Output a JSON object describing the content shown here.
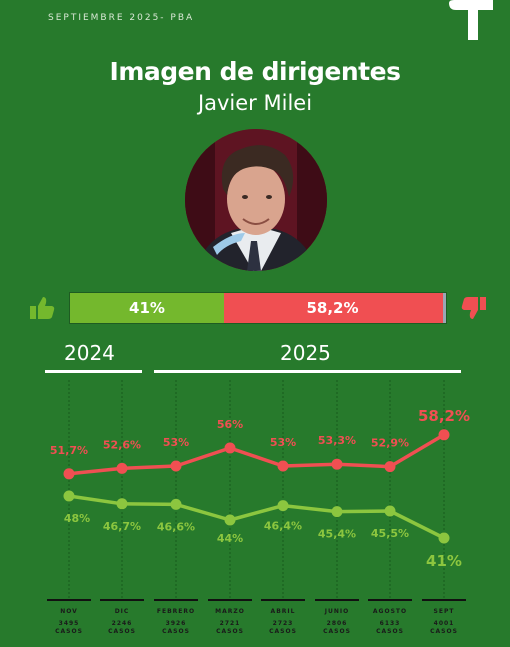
{
  "header": {
    "top_label": "SEPTIEMBRE 2025- PBA"
  },
  "title": "Imagen de dirigentes",
  "subtitle": "Javier Milei",
  "summary_bar": {
    "approve": 41,
    "disapprove": 58.2,
    "approve_label": "41%",
    "disapprove_label": "58,2%"
  },
  "years": [
    {
      "label": "2024"
    },
    {
      "label": "2025"
    }
  ],
  "icons": {
    "approve": "thumbs-up-icon",
    "disapprove": "thumbs-down-icon",
    "logo": "brand-logo-icon"
  },
  "colors": {
    "background": "#277a2c",
    "approve": "#8cc63f",
    "disapprove": "#f04f52"
  },
  "chart_data": {
    "type": "line",
    "categories": [
      "NOV",
      "DIC",
      "FEBRERO",
      "MARZO",
      "ABRIL",
      "JUNIO",
      "AGOSTO",
      "SEPT"
    ],
    "cases": [
      "3495 CASOS",
      "2246 CASOS",
      "3926 CASOS",
      "2721 CASOS",
      "2723 CASOS",
      "2806 CASOS",
      "6133 CASOS",
      "4001 CASOS"
    ],
    "series": [
      {
        "values": [
          51.7,
          52.6,
          53,
          56,
          53,
          53.3,
          52.9,
          58.2
        ],
        "labels": [
          "51,7%",
          "52,6%",
          "53%",
          "56%",
          "53%",
          "53,3%",
          "52,9%",
          "58,2%"
        ],
        "color": "#f04f52"
      },
      {
        "values": [
          48,
          46.7,
          46.6,
          44,
          46.4,
          45.4,
          45.5,
          41
        ],
        "labels": [
          "48%",
          "46,7%",
          "46,6%",
          "44%",
          "46,4%",
          "45,4%",
          "45,5%",
          "41%"
        ],
        "color": "#8cc63f"
      }
    ]
  }
}
